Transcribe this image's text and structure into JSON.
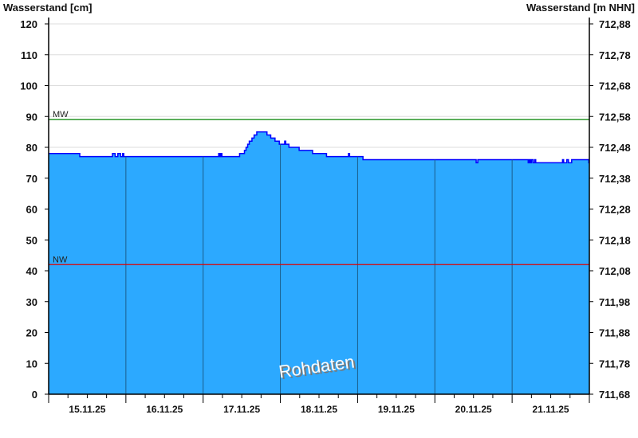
{
  "chart_data": {
    "type": "area",
    "ylabel_left": "Wasserstand [cm]",
    "ylabel_right": "Wasserstand [m NHN]",
    "ylim": [
      0,
      120
    ],
    "yticks_left": [
      "0",
      "10",
      "20",
      "30",
      "40",
      "50",
      "60",
      "70",
      "80",
      "90",
      "100",
      "110",
      "120"
    ],
    "yticks_right": [
      "711,68",
      "711,78",
      "711,88",
      "711,98",
      "712,08",
      "712,18",
      "712,28",
      "712,38",
      "712,48",
      "712,58",
      "712,68",
      "712,78",
      "712,88"
    ],
    "xlim": [
      "15.11.25 00:00",
      "22.11.25 00:00"
    ],
    "xtick_labels": [
      "15.11.25",
      "16.11.25",
      "17.11.25",
      "18.11.25",
      "19.11.25",
      "20.11.25",
      "21.11.25"
    ],
    "grid": true,
    "reference_lines": [
      {
        "name": "MW",
        "value": 89,
        "color": "#008000"
      },
      {
        "name": "NW",
        "value": 42,
        "color": "#e00000"
      }
    ],
    "fill_color": "#2ca9ff",
    "line_color": "#0000ff",
    "watermark": "Rohdaten",
    "series": [
      {
        "step": true,
        "points": [
          [
            "15.11.25 00:00",
            78
          ],
          [
            "15.11.25 09:40",
            77
          ],
          [
            "15.11.25 19:50",
            78
          ],
          [
            "15.11.25 20:40",
            77
          ],
          [
            "15.11.25 21:30",
            78
          ],
          [
            "15.11.25 22:20",
            77
          ],
          [
            "15.11.25 23:00",
            78
          ],
          [
            "15.11.25 23:20",
            77
          ],
          [
            "17.11.25 04:50",
            78
          ],
          [
            "17.11.25 05:10",
            77
          ],
          [
            "17.11.25 05:30",
            78
          ],
          [
            "17.11.25 05:50",
            77
          ],
          [
            "17.11.25 11:20",
            78
          ],
          [
            "17.11.25 12:50",
            79
          ],
          [
            "17.11.25 13:20",
            80
          ],
          [
            "17.11.25 13:50",
            81
          ],
          [
            "17.11.25 14:20",
            82
          ],
          [
            "17.11.25 15:10",
            83
          ],
          [
            "17.11.25 15:50",
            84
          ],
          [
            "17.11.25 16:40",
            85
          ],
          [
            "17.11.25 19:50",
            84
          ],
          [
            "17.11.25 21:00",
            83
          ],
          [
            "17.11.25 22:20",
            82
          ],
          [
            "17.11.25 23:40",
            81
          ],
          [
            "18.11.25 01:20",
            82
          ],
          [
            "18.11.25 01:40",
            81
          ],
          [
            "18.11.25 02:40",
            80
          ],
          [
            "18.11.25 05:50",
            79
          ],
          [
            "18.11.25 10:00",
            78
          ],
          [
            "18.11.25 14:20",
            77
          ],
          [
            "18.11.25 21:10",
            78
          ],
          [
            "18.11.25 21:30",
            77
          ],
          [
            "19.11.25 01:40",
            76
          ],
          [
            "20.11.25 12:50",
            75
          ],
          [
            "20.11.25 13:20",
            76
          ],
          [
            "21.11.25 05:00",
            75
          ],
          [
            "21.11.25 05:20",
            76
          ],
          [
            "21.11.25 05:40",
            75
          ],
          [
            "21.11.25 06:00",
            76
          ],
          [
            "21.11.25 06:30",
            75
          ],
          [
            "21.11.25 07:00",
            76
          ],
          [
            "21.11.25 07:20",
            75
          ],
          [
            "21.11.25 15:40",
            76
          ],
          [
            "21.11.25 16:00",
            75
          ],
          [
            "21.11.25 17:00",
            76
          ],
          [
            "21.11.25 17:30",
            75
          ],
          [
            "21.11.25 18:30",
            76
          ],
          [
            "21.11.25 23:50",
            75
          ],
          [
            "22.11.25 00:00",
            75
          ]
        ]
      }
    ]
  }
}
